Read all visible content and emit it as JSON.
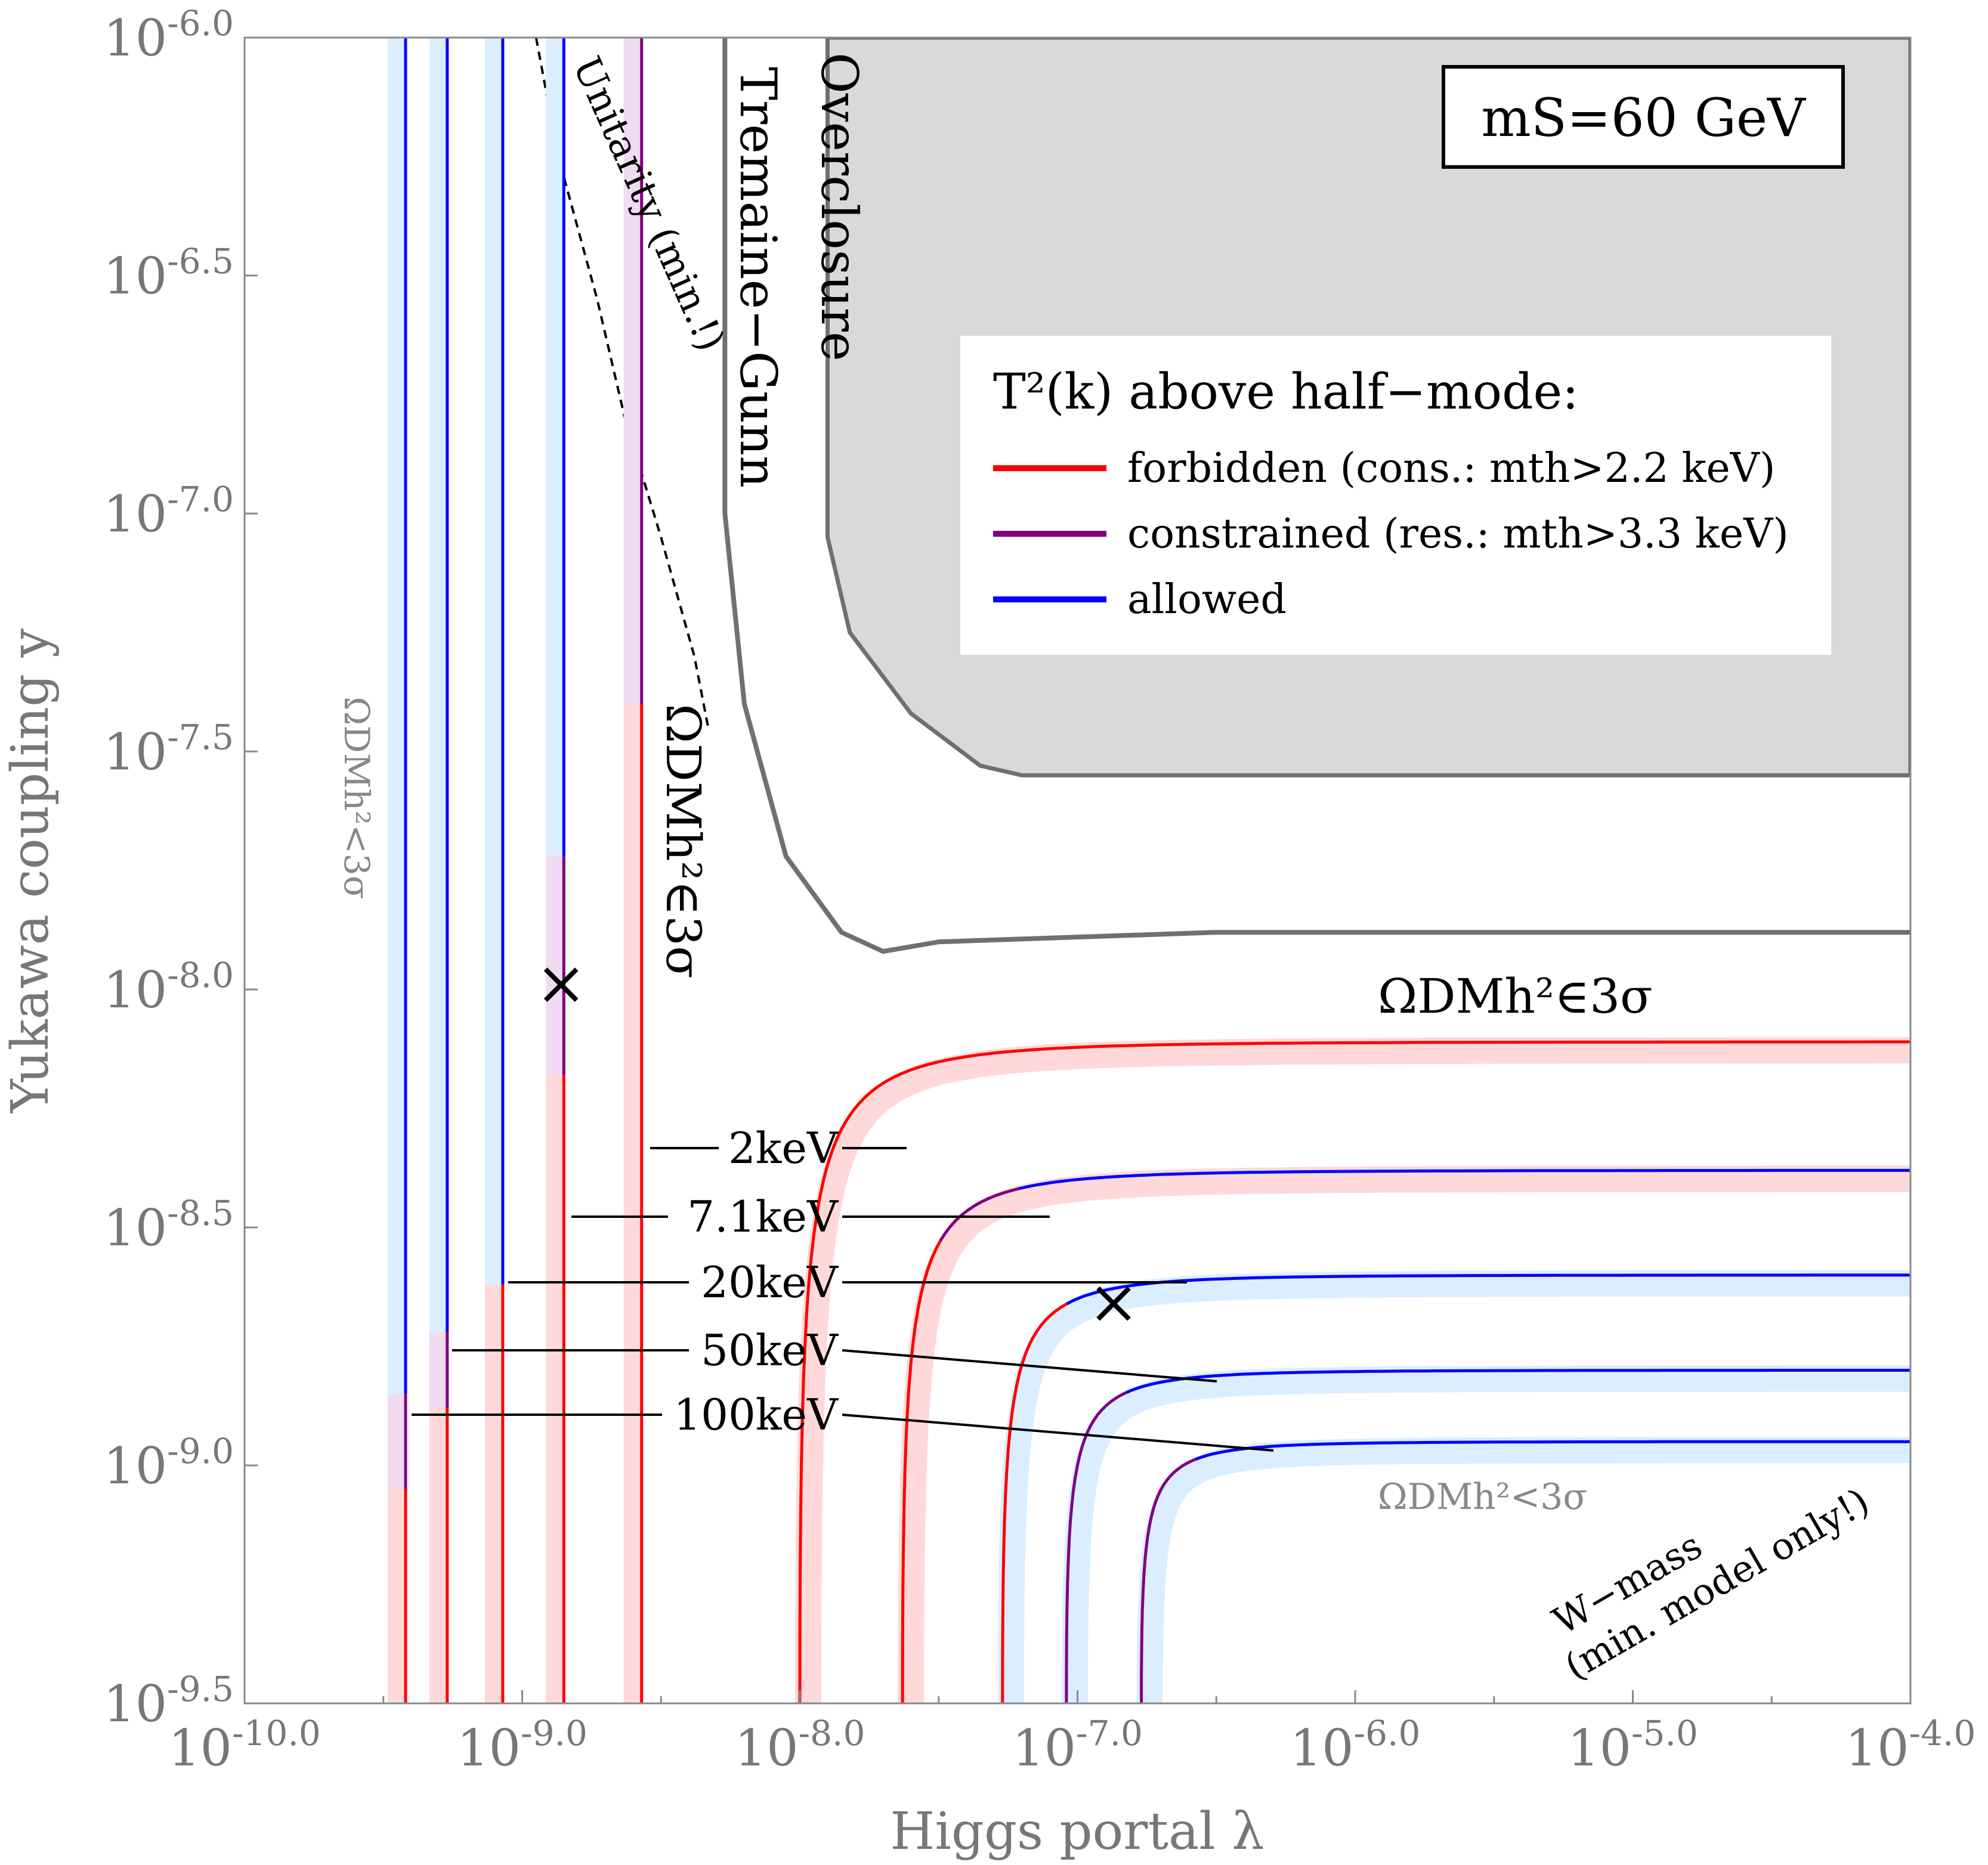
{
  "chart_data": {
    "type": "line",
    "xlabel": "Higgs portal λ",
    "ylabel": "Yukawa coupling y",
    "x_scale": "log",
    "y_scale": "log",
    "xlim_log10": [
      -10.0,
      -4.0
    ],
    "ylim_log10": [
      -9.5,
      -6.0
    ],
    "x_ticks": [
      "10^-10.0",
      "10^-9.0",
      "10^-8.0",
      "10^-7.0",
      "10^-6.0",
      "10^-5.0",
      "10^-4.0"
    ],
    "y_ticks": [
      "10^-6.0",
      "10^-6.5",
      "10^-7.0",
      "10^-7.5",
      "10^-8.0",
      "10^-8.5",
      "10^-9.0",
      "10^-9.5"
    ],
    "mass_box": "mS=60 GeV",
    "legend": {
      "title": "T²(k) above half−mode:",
      "entries": [
        {
          "label": "forbidden (cons.: mth>2.2 keV)",
          "color": "#ff0000"
        },
        {
          "label": "constrained (res.: mth>3.3 keV)",
          "color": "#800080"
        },
        {
          "label": "allowed",
          "color": "#0000ff"
        }
      ]
    },
    "region_labels": {
      "overclosure": "Overclosure",
      "tremaine_gunn": "Tremaine−Gunn",
      "unitarity": "Unitarity (min.!)",
      "omega_in_vertical": "ΩDMh²∈3σ",
      "omega_in_horizontal": "ΩDMh²∈3σ",
      "omega_lt_left": "ΩDMh²<3σ",
      "omega_lt_right": "ΩDMh²<3σ",
      "wmass_line1": "W−mass",
      "wmass_line2": "(min. model only!)"
    },
    "mass_labels": [
      "2keV",
      "7.1keV",
      "20keV",
      "50keV",
      "100keV"
    ],
    "vertical_lines_log10_lambda": [
      -9.42,
      -9.27,
      -9.07,
      -8.85,
      -8.57
    ],
    "horizontal_plateaus_log10_y": [
      -8.11,
      -8.38,
      -8.6,
      -8.8,
      -8.95
    ],
    "benchmark_points": [
      {
        "log10_lambda": -8.86,
        "log10_y": -7.99
      },
      {
        "log10_lambda": -6.87,
        "log10_y": -8.66
      }
    ],
    "overclosure_boundary": [
      [
        -7.9,
        -6.0
      ],
      [
        -7.9,
        -7.05
      ],
      [
        -7.82,
        -7.25
      ],
      [
        -7.6,
        -7.42
      ],
      [
        -7.35,
        -7.53
      ],
      [
        -7.2,
        -7.55
      ],
      [
        -4.0,
        -7.55
      ]
    ],
    "tremaine_gunn_boundary": [
      [
        -8.27,
        -6.0
      ],
      [
        -8.27,
        -7.0
      ],
      [
        -8.2,
        -7.4
      ],
      [
        -8.05,
        -7.72
      ],
      [
        -7.85,
        -7.88
      ],
      [
        -7.7,
        -7.92
      ],
      [
        -7.5,
        -7.9
      ],
      [
        -6.5,
        -7.88
      ],
      [
        -4.0,
        -7.88
      ]
    ],
    "unitarity_boundary": [
      [
        -8.95,
        -6.0
      ],
      [
        -8.87,
        -6.25
      ],
      [
        -8.73,
        -6.55
      ],
      [
        -8.63,
        -6.8
      ],
      [
        -8.5,
        -7.05
      ],
      [
        -8.38,
        -7.3
      ],
      [
        -8.33,
        -7.45
      ]
    ]
  }
}
